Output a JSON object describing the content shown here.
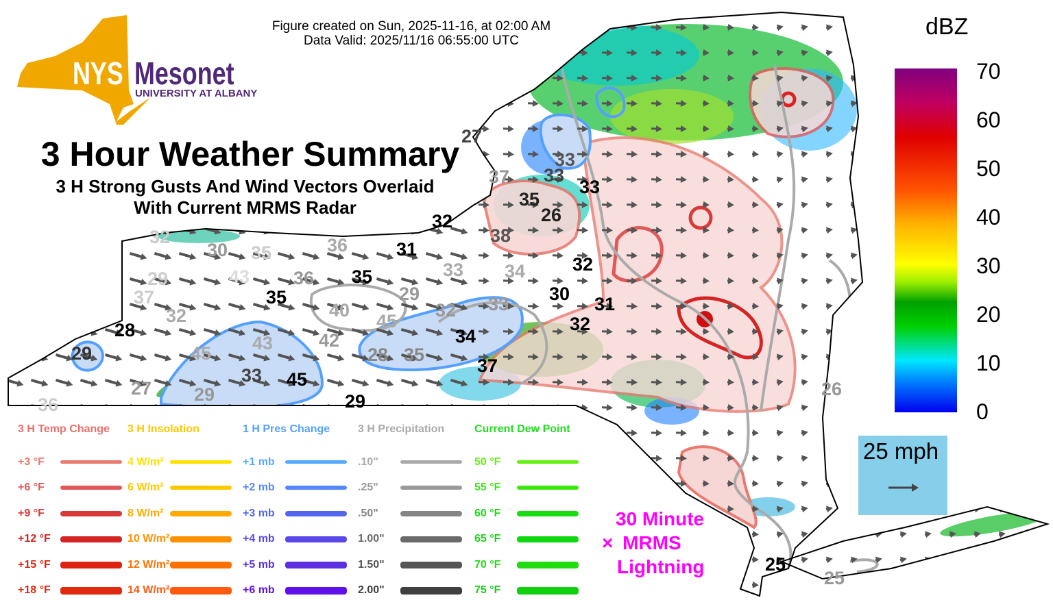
{
  "header": {
    "created": "Figure created on Sun, 2025-11-16, at 02:00 AM",
    "valid": "Data Valid: 2025/11/16 06:55:00 UTC"
  },
  "logo": {
    "nys": "NYS",
    "mesonet": "Mesonet",
    "university": "UNIVERSITY AT ALBANY"
  },
  "title": "3 Hour Weather Summary",
  "subtitle1": "3 H Strong Gusts And Wind Vectors Overlaid",
  "subtitle2": "With Current MRMS Radar",
  "colorbar": {
    "unit": "dBZ",
    "ticks": [
      "70",
      "60",
      "50",
      "40",
      "30",
      "20",
      "10",
      "0"
    ]
  },
  "scale": {
    "label": "25 mph"
  },
  "lightning": {
    "line1": "30 Minute",
    "symbol": "×",
    "line2": "MRMS",
    "line3": "Lightning"
  },
  "legend": [
    {
      "title": "3 H Temp Change",
      "color": "#e8706a",
      "items": [
        {
          "label": "+3 °F",
          "color": "#e87a70"
        },
        {
          "label": "+6 °F",
          "color": "#e05858"
        },
        {
          "label": "+9 °F",
          "color": "#d83a3a"
        },
        {
          "label": "+12 °F",
          "color": "#d42424"
        },
        {
          "label": "+15 °F",
          "color": "#dc2410"
        },
        {
          "label": "+18 °F",
          "color": "#e02a10"
        }
      ]
    },
    {
      "title": "3 H Insolation",
      "color": "#ffc800",
      "items": [
        {
          "label": "4 W/m²",
          "color": "#ffe000"
        },
        {
          "label": "6 W/m²",
          "color": "#ffc800"
        },
        {
          "label": "8 W/m²",
          "color": "#ffaa00"
        },
        {
          "label": "10 W/m²",
          "color": "#ff9000"
        },
        {
          "label": "12 W/m²",
          "color": "#ff7000"
        },
        {
          "label": "14 W/m²",
          "color": "#ff5a10"
        }
      ]
    },
    {
      "title": "1 H Pres Change",
      "color": "#55a0ff",
      "items": [
        {
          "label": "+1 mb",
          "color": "#55aaff"
        },
        {
          "label": "+2 mb",
          "color": "#5588ff"
        },
        {
          "label": "+3 mb",
          "color": "#5566ee"
        },
        {
          "label": "+4 mb",
          "color": "#5a48e8"
        },
        {
          "label": "+5 mb",
          "color": "#5a30e0"
        },
        {
          "label": "+6 mb",
          "color": "#6010e8"
        }
      ]
    },
    {
      "title": "3 H Precipitation",
      "color": "#aaaaaa",
      "items": [
        {
          "label": ".10\"",
          "color": "#aaaaaa"
        },
        {
          "label": ".25\"",
          "color": "#999999"
        },
        {
          "label": ".50\"",
          "color": "#858585"
        },
        {
          "label": "1.00\"",
          "color": "#6a6a6a"
        },
        {
          "label": "1.50\"",
          "color": "#555555"
        },
        {
          "label": "2.00\"",
          "color": "#404040"
        }
      ]
    },
    {
      "title": "Current Dew Point",
      "color": "#22dd22",
      "items": [
        {
          "label": "50 °F",
          "color": "#66f010"
        },
        {
          "label": "55 °F",
          "color": "#3ae810"
        },
        {
          "label": "60 °F",
          "color": "#18dd10"
        },
        {
          "label": "65 °F",
          "color": "#10d810"
        },
        {
          "label": "70 °F",
          "color": "#20dd10"
        },
        {
          "label": "75 °F",
          "color": "#10d010"
        }
      ]
    }
  ],
  "gusts": [
    "27",
    "33",
    "37",
    "33",
    "33",
    "35",
    "26",
    "32",
    "38",
    "32",
    "30",
    "35",
    "36",
    "31",
    "33",
    "34",
    "32",
    "43",
    "29",
    "36",
    "35",
    "35",
    "37",
    "29",
    "30",
    "40",
    "32",
    "33",
    "31",
    "32",
    "45",
    "32",
    "28",
    "42",
    "34",
    "43",
    "45",
    "29",
    "28",
    "35",
    "37",
    "33",
    "45",
    "27",
    "29",
    "29",
    "36",
    "26",
    "25",
    "25"
  ]
}
